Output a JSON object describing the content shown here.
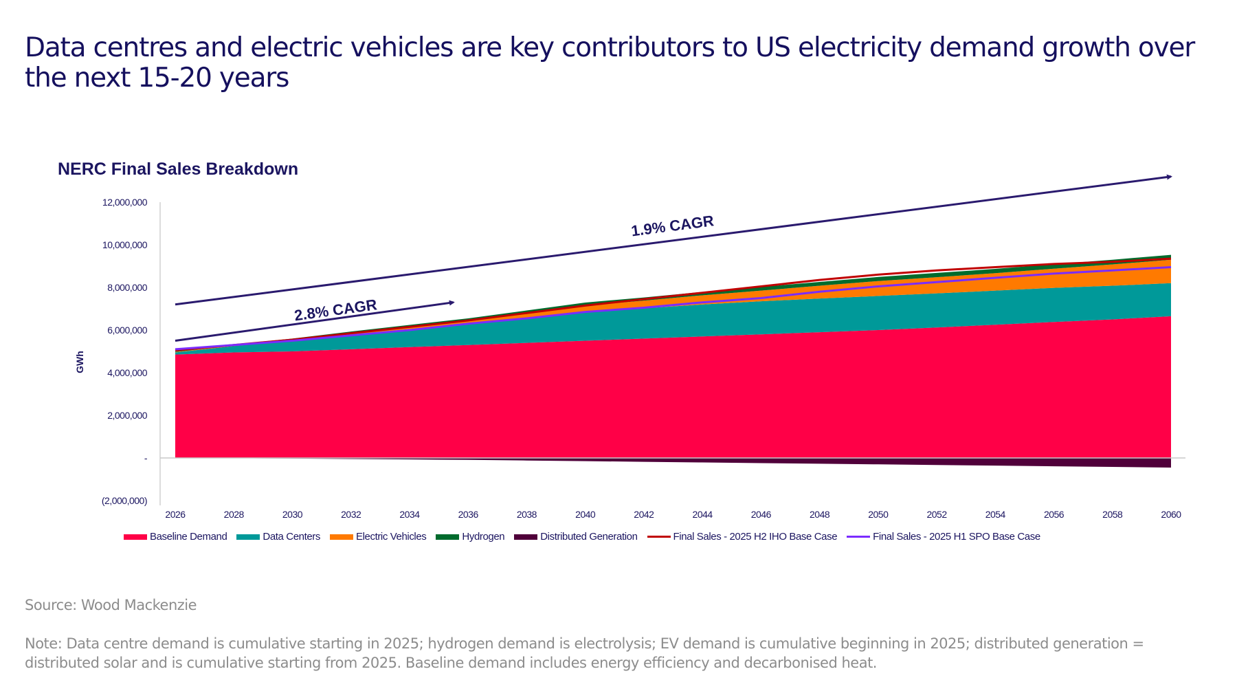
{
  "title": "Data centres and electric vehicles are key contributors to US electricity demand growth over the next 15-20 years",
  "source": "Source: Wood Mackenzie",
  "note": "Note: Data centre demand is cumulative starting in 2025; hydrogen demand is electrolysis; EV demand is cumulative beginning in 2025; distributed generation = distributed solar and is cumulative starting from 2025. Baseline demand includes energy efficiency and decarbonised heat.",
  "chart_data": {
    "type": "area",
    "title": "NERC Final Sales Breakdown",
    "xlabel": "",
    "ylabel": "GWh",
    "ylim": [
      -2000000,
      12000000
    ],
    "yticks": [
      -2000000,
      0,
      2000000,
      4000000,
      6000000,
      8000000,
      10000000,
      12000000
    ],
    "ytick_labels": [
      "(2,000,000)",
      "-",
      "2,000,000",
      "4,000,000",
      "6,000,000",
      "8,000,000",
      "10,000,000",
      "12,000,000"
    ],
    "x": [
      2026,
      2028,
      2030,
      2032,
      2034,
      2036,
      2038,
      2040,
      2042,
      2044,
      2046,
      2048,
      2050,
      2052,
      2054,
      2056,
      2058,
      2060
    ],
    "xtick_labels": [
      "2026",
      "2028",
      "2030",
      "2032",
      "2034",
      "2036",
      "2038",
      "2040",
      "2042",
      "2044",
      "2046",
      "2048",
      "2050",
      "2052",
      "2054",
      "2056",
      "2058",
      "2060"
    ],
    "stacked_series": [
      {
        "name": "Baseline Demand",
        "color": "#ff0047",
        "values": [
          4850000,
          4950000,
          5000000,
          5100000,
          5200000,
          5300000,
          5400000,
          5500000,
          5600000,
          5700000,
          5800000,
          5900000,
          6000000,
          6120000,
          6250000,
          6380000,
          6500000,
          6650000
        ]
      },
      {
        "name": "Data Centers",
        "color": "#009999",
        "values": [
          100000,
          300000,
          500000,
          680000,
          850000,
          1000000,
          1180000,
          1350000,
          1420000,
          1500000,
          1550000,
          1580000,
          1600000,
          1600000,
          1600000,
          1600000,
          1580000,
          1550000
        ]
      },
      {
        "name": "Electric Vehicles",
        "color": "#ff7a00",
        "values": [
          20000,
          30000,
          50000,
          80000,
          110000,
          150000,
          220000,
          300000,
          360000,
          430000,
          500000,
          600000,
          700000,
          760000,
          820000,
          900000,
          1000000,
          1100000
        ]
      },
      {
        "name": "Hydrogen",
        "color": "#006b2d",
        "values": [
          30000,
          40000,
          50000,
          70000,
          80000,
          100000,
          120000,
          140000,
          150000,
          160000,
          170000,
          180000,
          190000,
          200000,
          200000,
          210000,
          220000,
          230000
        ]
      },
      {
        "name": "Distributed Generation",
        "color": "#50003a",
        "values": [
          0,
          -10000,
          -30000,
          -50000,
          -70000,
          -90000,
          -120000,
          -150000,
          -180000,
          -210000,
          -240000,
          -270000,
          -300000,
          -330000,
          -360000,
          -390000,
          -420000,
          -450000
        ]
      }
    ],
    "line_series": [
      {
        "name": "Final Sales - 2025 H2 IHO Base Case",
        "color": "#c00000",
        "values": [
          5050000,
          5300000,
          5550000,
          5850000,
          6150000,
          6450000,
          6800000,
          7150000,
          7450000,
          7750000,
          8050000,
          8350000,
          8600000,
          8800000,
          8950000,
          9100000,
          9200000,
          9350000
        ]
      },
      {
        "name": "Final Sales - 2025 H1 SPO Base Case",
        "color": "#7b2cff",
        "values": [
          5100000,
          5300000,
          5500000,
          5750000,
          6000000,
          6300000,
          6550000,
          6850000,
          7050000,
          7300000,
          7500000,
          7800000,
          8050000,
          8250000,
          8450000,
          8650000,
          8800000,
          8950000
        ]
      }
    ],
    "annotations": [
      {
        "text": "2.8% CAGR",
        "from": [
          2026,
          5500000
        ],
        "to": [
          2035.5,
          7300000
        ],
        "label_at": [
          2031.5,
          6700000
        ]
      },
      {
        "text": "1.9% CAGR",
        "from": [
          2026,
          7200000
        ],
        "to": [
          2060,
          13200000
        ],
        "label_at": [
          2043,
          10650000
        ]
      }
    ],
    "legend_position": "bottom",
    "grid": false,
    "annotation_color": "#2a1a6e"
  }
}
